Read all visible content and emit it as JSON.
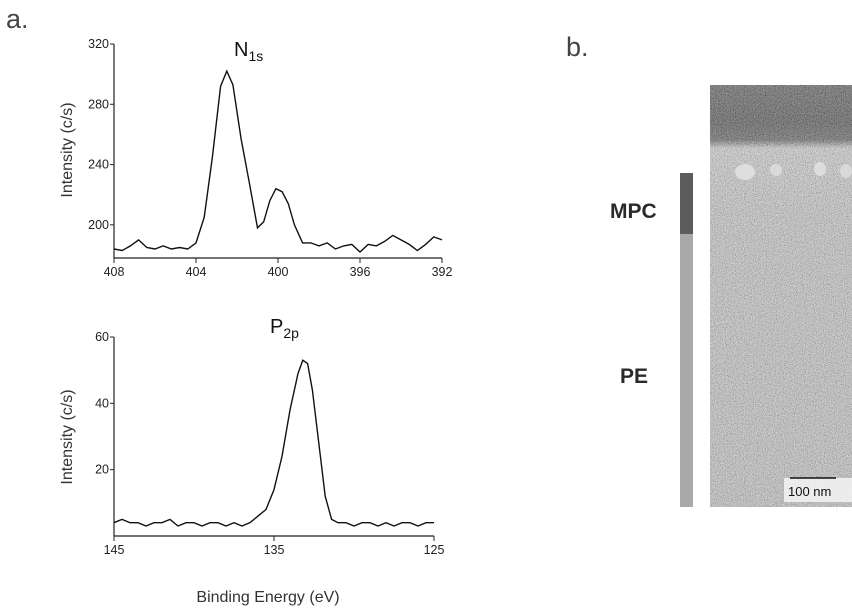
{
  "figure": {
    "panel_a_label": "a.",
    "panel_b_label": "b.",
    "shared_xlabel": "Binding Energy (eV)"
  },
  "chart_data": [
    {
      "type": "line",
      "title_main": "N",
      "title_sub": "1s",
      "ylabel": "Intensity (c/s)",
      "xlabel": "",
      "x_reversed": true,
      "xlim": [
        408,
        392
      ],
      "ylim": [
        178,
        320
      ],
      "xticks": [
        408,
        404,
        400,
        396,
        392
      ],
      "yticks": [
        200,
        240,
        280,
        320
      ],
      "grid": false,
      "series": [
        {
          "x": [
            408,
            407.6,
            407.2,
            406.8,
            406.4,
            406,
            405.6,
            405.2,
            404.8,
            404.4,
            404,
            403.6,
            403.2,
            402.8,
            402.5,
            402.2,
            401.8,
            401.4,
            401,
            400.7,
            400.4,
            400.1,
            399.8,
            399.5,
            399.2,
            398.8,
            398.4,
            398,
            397.6,
            397.2,
            396.8,
            396.4,
            396,
            395.6,
            395.2,
            394.8,
            394.4,
            394,
            393.6,
            393.2,
            392.8,
            392.4,
            392
          ],
          "y": [
            184,
            183,
            186,
            190,
            185,
            184,
            186,
            184,
            185,
            184,
            188,
            205,
            245,
            292,
            302,
            293,
            257,
            228,
            198,
            202,
            216,
            224,
            222,
            214,
            200,
            188,
            188,
            186,
            188,
            184,
            186,
            187,
            182,
            187,
            186,
            189,
            193,
            190,
            187,
            183,
            187,
            192,
            190
          ]
        }
      ]
    },
    {
      "type": "line",
      "title_main": "P",
      "title_sub": "2p",
      "ylabel": "Intensity (c/s)",
      "xlabel": "",
      "x_reversed": true,
      "xlim": [
        145,
        125
      ],
      "ylim": [
        0,
        60
      ],
      "xticks": [
        145,
        135,
        125
      ],
      "yticks": [
        20,
        40,
        60
      ],
      "grid": false,
      "series": [
        {
          "x": [
            145,
            144.5,
            144,
            143.5,
            143,
            142.5,
            142,
            141.5,
            141,
            140.5,
            140,
            139.5,
            139,
            138.5,
            138,
            137.5,
            137,
            136.5,
            136,
            135.5,
            135,
            134.5,
            134,
            133.5,
            133.2,
            132.9,
            132.6,
            132.2,
            131.8,
            131.4,
            131,
            130.5,
            130,
            129.5,
            129,
            128.5,
            128,
            127.5,
            127,
            126.5,
            126,
            125.5,
            125
          ],
          "y": [
            4,
            5,
            4,
            4,
            3,
            4,
            4,
            5,
            3,
            4,
            4,
            3,
            4,
            4,
            3,
            4,
            3,
            4,
            6,
            8,
            14,
            24,
            38,
            49,
            53,
            52,
            44,
            28,
            12,
            5,
            4,
            4,
            3,
            4,
            4,
            3,
            4,
            3,
            4,
            4,
            3,
            4,
            4
          ]
        }
      ]
    }
  ],
  "tem": {
    "labels": [
      "MPC",
      "PE"
    ],
    "scale_bar_text": "100 nm",
    "layer_colors": {
      "mpc": "#5c5c5c",
      "pe": "#a8a8a8"
    }
  }
}
